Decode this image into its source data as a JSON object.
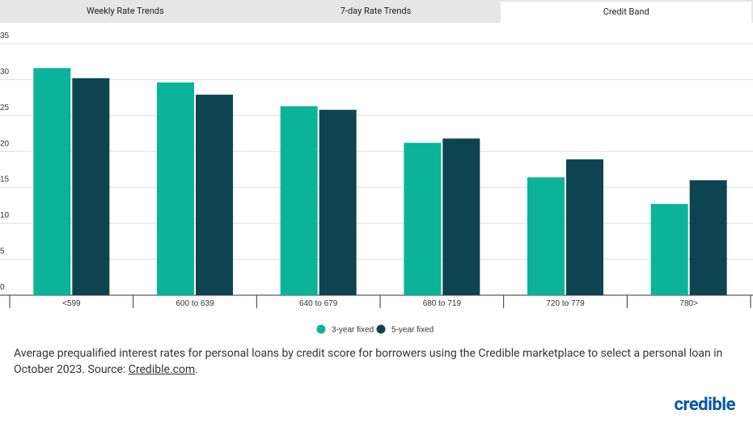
{
  "tabs": [
    "Weekly Rate Trends",
    "7-day Rate Trends",
    "Credit Band"
  ],
  "chart_data": {
    "type": "bar",
    "categories": [
      "<599",
      "600 to 639",
      "640 to 679",
      "680 to 719",
      "720 to 779",
      "780>"
    ],
    "series": [
      {
        "name": "3-year fixed",
        "color": "#0bb39a",
        "values": [
          31.6,
          29.6,
          26.3,
          21.2,
          16.4,
          12.7
        ]
      },
      {
        "name": "5-year fixed",
        "color": "#0e4452",
        "values": [
          30.2,
          27.9,
          25.8,
          21.8,
          18.9,
          16.0
        ]
      }
    ],
    "ylim": [
      0,
      35
    ],
    "yticks": [
      0,
      5,
      10,
      15,
      20,
      25,
      30,
      35
    ],
    "grid": true
  },
  "caption": {
    "text": "Average prequalified interest rates for personal loans by credit score for borrowers using the Credible marketplace to select a personal loan in October 2023. Source: ",
    "link": "Credible.com",
    "end": "."
  },
  "logo": "credible"
}
